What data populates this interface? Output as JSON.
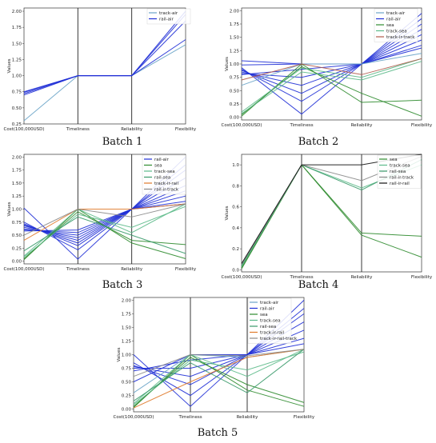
{
  "colors": {
    "track-air": "#6aa4c8",
    "rail-air": "#1f2fd6",
    "sea": "#2e8b2e",
    "track-sea": "#5cba8a",
    "rail-sea": "#3a9a6a",
    "track-ir-track": "#b05a4a",
    "track-ir-rail": "#e07a2a",
    "rail-ir-track": "#888888",
    "rail-ir-rail": "#111111",
    "track-ir-rail-track": "#8a8a8a"
  },
  "chart_data": [
    {
      "type": "parallel-coordinates",
      "caption": "Batch 1",
      "axes": [
        "Cost(100,000USD)",
        "Timeliness",
        "Reliability",
        "Flexibility"
      ],
      "ylabel": "Values",
      "ylim": [
        0.25,
        2.05
      ],
      "yticks": [
        "0.25",
        "0.50",
        "0.75",
        "1.00",
        "1.25",
        "1.50",
        "1.75",
        "2.00"
      ],
      "ytick_values": [
        0.25,
        0.5,
        0.75,
        1.0,
        1.25,
        1.5,
        1.75,
        2.0
      ],
      "legend": [
        {
          "name": "track-air",
          "key": "track-air"
        },
        {
          "name": "rail-air",
          "key": "rail-air"
        }
      ],
      "series": [
        {
          "key": "track-air",
          "values": [
            [
              0.3,
              1,
              1,
              1.48
            ]
          ]
        },
        {
          "key": "rail-air",
          "values": [
            [
              0.7,
              1,
              1,
              1.56
            ],
            [
              0.72,
              1,
              1,
              1.85
            ],
            [
              0.75,
              1,
              1,
              2.0
            ],
            [
              0.74,
              1,
              1,
              1.95
            ]
          ]
        }
      ]
    },
    {
      "type": "parallel-coordinates",
      "caption": "Batch 2",
      "axes": [
        "Cost(100,000USD)",
        "Timeliness",
        "Reliability",
        "Flexibility"
      ],
      "ylabel": "Values",
      "ylim": [
        -0.05,
        2.05
      ],
      "yticks": [
        "0.00",
        "0.25",
        "0.50",
        "0.75",
        "1.00",
        "1.25",
        "1.50",
        "1.75",
        "2.00"
      ],
      "ytick_values": [
        0,
        0.25,
        0.5,
        0.75,
        1.0,
        1.25,
        1.5,
        1.75,
        2.0
      ],
      "legend": [
        {
          "name": "track-air",
          "key": "track-air"
        },
        {
          "name": "rail-air",
          "key": "rail-air"
        },
        {
          "name": "sea",
          "key": "sea"
        },
        {
          "name": "track-sea",
          "key": "track-sea"
        },
        {
          "name": "track-ir-track",
          "key": "track-ir-track"
        }
      ],
      "series": [
        {
          "key": "rail-air",
          "values": [
            [
              1.06,
              1,
              1,
              1.95
            ],
            [
              0.98,
              1,
              1,
              1.85
            ],
            [
              0.93,
              0.06,
              1,
              1.75
            ],
            [
              0.9,
              0.3,
              1,
              1.65
            ],
            [
              0.88,
              0.45,
              1,
              1.55
            ],
            [
              0.85,
              0.6,
              1,
              1.45
            ],
            [
              0.82,
              0.75,
              1,
              1.35
            ],
            [
              0.8,
              0.9,
              1,
              1.3
            ]
          ]
        },
        {
          "key": "track-air",
          "values": [
            [
              0.6,
              1,
              1,
              1.2
            ]
          ]
        },
        {
          "key": "sea",
          "values": [
            [
              0.02,
              1,
              0.28,
              0.32
            ],
            [
              0.05,
              0.95,
              0.45,
              0.02
            ]
          ]
        },
        {
          "key": "track-sea",
          "values": [
            [
              0.1,
              0.92,
              0.75,
              1.1
            ],
            [
              0.07,
              0.85,
              0.7,
              1.05
            ]
          ]
        },
        {
          "key": "track-ir-track",
          "values": [
            [
              0.7,
              1,
              0.8,
              1.1
            ]
          ]
        }
      ]
    },
    {
      "type": "parallel-coordinates",
      "caption": "Batch 3",
      "axes": [
        "Cost(100,000USD)",
        "Timeliness",
        "Reliability",
        "Flexibility"
      ],
      "ylabel": "Values",
      "ylim": [
        -0.05,
        2.05
      ],
      "yticks": [
        "0.00",
        "0.25",
        "0.50",
        "0.75",
        "1.00",
        "1.25",
        "1.50",
        "1.75",
        "2.00"
      ],
      "ytick_values": [
        0,
        0.25,
        0.5,
        0.75,
        1.0,
        1.25,
        1.5,
        1.75,
        2.0
      ],
      "legend": [
        {
          "name": "rail-air",
          "key": "rail-air"
        },
        {
          "name": "sea",
          "key": "sea"
        },
        {
          "name": "track-sea",
          "key": "track-sea"
        },
        {
          "name": "rail-sea",
          "key": "rail-sea"
        },
        {
          "name": "track-ir-rail",
          "key": "track-ir-rail"
        },
        {
          "name": "rail-ir-track",
          "key": "rail-ir-track"
        }
      ],
      "series": [
        {
          "key": "rail-air",
          "values": [
            [
              1.02,
              0.04,
              1,
              2.0
            ],
            [
              0.75,
              0.22,
              1,
              1.85
            ],
            [
              0.72,
              0.3,
              1,
              1.75
            ],
            [
              0.7,
              0.35,
              1,
              1.6
            ],
            [
              0.68,
              0.4,
              1,
              1.45
            ],
            [
              0.65,
              0.45,
              1,
              1.35
            ],
            [
              0.62,
              0.5,
              1,
              1.25
            ],
            [
              0.6,
              0.55,
              1,
              1.15
            ],
            [
              0.58,
              0.6,
              1,
              1.1
            ]
          ]
        },
        {
          "key": "sea",
          "values": [
            [
              0.03,
              1,
              0.35,
              0.05
            ],
            [
              0.05,
              0.95,
              0.4,
              0.32
            ]
          ]
        },
        {
          "key": "track-sea",
          "values": [
            [
              0.1,
              1,
              0.55,
              1.1
            ],
            [
              0.08,
              0.9,
              0.65,
              1.05
            ]
          ]
        },
        {
          "key": "rail-sea",
          "values": [
            [
              0.2,
              0.85,
              0.5,
              0.15
            ]
          ]
        },
        {
          "key": "track-ir-rail",
          "values": [
            [
              0.4,
              1,
              1,
              1.1
            ]
          ]
        },
        {
          "key": "rail-ir-track",
          "values": [
            [
              0.5,
              1,
              0.85,
              1.1
            ]
          ]
        }
      ]
    },
    {
      "type": "parallel-coordinates",
      "caption": "Batch 4",
      "axes": [
        "Cost(100,000USD)",
        "Timeliness",
        "Reliability",
        "Flexibility"
      ],
      "ylabel": "Values",
      "ylim": [
        -0.02,
        1.1
      ],
      "yticks": [
        "0.0",
        "0.2",
        "0.4",
        "0.6",
        "0.8",
        "1.0"
      ],
      "ytick_values": [
        0,
        0.2,
        0.4,
        0.6,
        0.8,
        1.0
      ],
      "legend": [
        {
          "name": "sea",
          "key": "sea"
        },
        {
          "name": "track-sea",
          "key": "track-sea"
        },
        {
          "name": "rail-sea",
          "key": "rail-sea"
        },
        {
          "name": "rail-ir-track",
          "key": "rail-ir-track"
        },
        {
          "name": "rail-ir-rail",
          "key": "rail-ir-rail"
        }
      ],
      "series": [
        {
          "key": "sea",
          "values": [
            [
              0.01,
              1,
              0.35,
              0.32
            ],
            [
              0.02,
              1,
              0.33,
              0.12
            ]
          ]
        },
        {
          "key": "track-sea",
          "values": [
            [
              0.03,
              1,
              0.78,
              1.0
            ]
          ]
        },
        {
          "key": "rail-sea",
          "values": [
            [
              0.04,
              1,
              0.76,
              1.05
            ]
          ]
        },
        {
          "key": "rail-ir-track",
          "values": [
            [
              0.05,
              1,
              0.85,
              1.08
            ]
          ]
        },
        {
          "key": "rail-ir-rail",
          "values": [
            [
              0.06,
              1,
              1.0,
              1.1
            ]
          ]
        }
      ]
    },
    {
      "type": "parallel-coordinates",
      "caption": "Batch 5",
      "axes": [
        "Cost(100,000USD)",
        "Timeliness",
        "Reliability",
        "Flexibility"
      ],
      "ylabel": "Values",
      "ylim": [
        -0.05,
        2.05
      ],
      "yticks": [
        "0.00",
        "0.25",
        "0.50",
        "0.75",
        "1.00",
        "1.25",
        "1.50",
        "1.75",
        "2.00"
      ],
      "ytick_values": [
        0,
        0.25,
        0.5,
        0.75,
        1.0,
        1.25,
        1.5,
        1.75,
        2.0
      ],
      "legend": [
        {
          "name": "track-air",
          "key": "track-air"
        },
        {
          "name": "rail-air",
          "key": "rail-air"
        },
        {
          "name": "sea",
          "key": "sea"
        },
        {
          "name": "track-sea",
          "key": "track-sea"
        },
        {
          "name": "rail-sea",
          "key": "rail-sea"
        },
        {
          "name": "track-ir-rail",
          "key": "track-ir-rail"
        },
        {
          "name": "track-ir-rail-track",
          "key": "track-ir-rail-track"
        }
      ],
      "series": [
        {
          "key": "rail-air",
          "values": [
            [
              1.0,
              0.05,
              1,
              2.0
            ],
            [
              0.85,
              0.25,
              1,
              1.85
            ],
            [
              0.8,
              0.45,
              1,
              1.75
            ],
            [
              0.78,
              0.6,
              1,
              1.6
            ],
            [
              0.75,
              0.75,
              1,
              1.45
            ],
            [
              0.7,
              0.9,
              1,
              1.3
            ],
            [
              0.5,
              1,
              1,
              1.2
            ]
          ]
        },
        {
          "key": "track-air",
          "values": [
            [
              0.3,
              1,
              0.95,
              1.1
            ]
          ]
        },
        {
          "key": "sea",
          "values": [
            [
              0.03,
              1,
              0.35,
              0.05
            ],
            [
              0.05,
              0.95,
              0.45,
              0.12
            ]
          ]
        },
        {
          "key": "track-sea",
          "values": [
            [
              0.1,
              1,
              0.6,
              1.1
            ],
            [
              0.08,
              0.9,
              0.72,
              1.05
            ]
          ]
        },
        {
          "key": "rail-sea",
          "values": [
            [
              0.15,
              0.85,
              0.3,
              1.1
            ]
          ]
        },
        {
          "key": "track-ir-rail",
          "values": [
            [
              0.02,
              0.5,
              0.95,
              1.1
            ]
          ]
        },
        {
          "key": "track-ir-rail-track",
          "values": [
            [
              0.6,
              1,
              0.98,
              1.1
            ]
          ]
        }
      ]
    }
  ]
}
